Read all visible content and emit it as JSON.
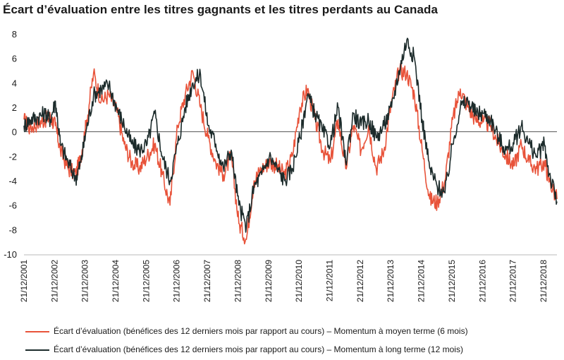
{
  "chart_data": {
    "type": "line",
    "title": "Écart d’évaluation entre les titres gagnants et les titres perdants au Canada",
    "xlabel": "",
    "ylabel": "",
    "ylim": [
      -10,
      8
    ],
    "yticks": [
      8,
      6,
      4,
      2,
      0,
      -2,
      -4,
      -6,
      -8,
      -10
    ],
    "xlim": [
      "2001-12-21",
      "2019-05-31"
    ],
    "xtick_labels": [
      "21/12/2001",
      "21/12/2002",
      "21/12/2003",
      "21/12/2004",
      "21/12/2005",
      "21/12/2006",
      "21/12/2007",
      "21/12/2008",
      "21/12/2009",
      "21/12/2010",
      "21/12/2011",
      "21/12/2012",
      "21/12/2013",
      "21/12/2014",
      "21/12/2015",
      "21/12/2016",
      "21/12/2017",
      "21/12/2018"
    ],
    "grid": false,
    "zero_line": true,
    "legend_position": "bottom",
    "series": [
      {
        "name": "Écart d’évaluation (bénéfices des 12 derniers mois par rapport au cours) – Momentum à moyen terme (6 mois)",
        "color": "#e8533a",
        "x": [
          "2001-12-21",
          "2002-03-01",
          "2002-06-01",
          "2002-09-01",
          "2002-11-01",
          "2003-01-01",
          "2003-03-01",
          "2003-06-01",
          "2003-09-01",
          "2003-11-01",
          "2004-01-01",
          "2004-04-01",
          "2004-07-01",
          "2004-10-01",
          "2005-01-01",
          "2005-04-01",
          "2005-07-01",
          "2005-10-01",
          "2006-01-01",
          "2006-04-01",
          "2006-07-01",
          "2006-10-01",
          "2007-01-01",
          "2007-04-01",
          "2007-07-01",
          "2007-10-01",
          "2008-01-01",
          "2008-04-01",
          "2008-07-01",
          "2008-10-01",
          "2009-01-01",
          "2009-04-01",
          "2009-07-01",
          "2009-10-01",
          "2010-01-01",
          "2010-04-01",
          "2010-07-01",
          "2010-10-01",
          "2011-01-01",
          "2011-04-01",
          "2011-07-01",
          "2011-10-01",
          "2012-01-01",
          "2012-04-01",
          "2012-07-01",
          "2012-10-01",
          "2013-01-01",
          "2013-04-01",
          "2013-07-01",
          "2013-10-01",
          "2014-01-01",
          "2014-04-01",
          "2014-07-01",
          "2014-10-01",
          "2015-01-01",
          "2015-04-01",
          "2015-07-01",
          "2015-10-01",
          "2016-01-01",
          "2016-04-01",
          "2016-07-01",
          "2016-10-01",
          "2017-01-01",
          "2017-04-01",
          "2017-07-01",
          "2017-10-01",
          "2018-01-01",
          "2018-04-01",
          "2018-07-01",
          "2018-10-01",
          "2019-01-01",
          "2019-03-01",
          "2019-05-31"
        ],
        "values": [
          1.0,
          0.3,
          0.7,
          1.0,
          1.2,
          0.5,
          -1.5,
          -3.0,
          -3.5,
          -2.0,
          0.5,
          4.8,
          2.5,
          3.0,
          1.8,
          -1.0,
          -2.5,
          -3.0,
          -2.0,
          -1.0,
          -3.5,
          -6.0,
          0.5,
          3.0,
          4.9,
          2.0,
          -0.5,
          -2.5,
          -3.5,
          -2.0,
          -7.5,
          -8.8,
          -4.0,
          -3.0,
          -2.5,
          -2.8,
          -3.5,
          -2.0,
          2.0,
          3.5,
          1.0,
          -1.5,
          -2.5,
          1.0,
          -3.0,
          0.5,
          -1.5,
          0.5,
          -3.0,
          -1.5,
          2.5,
          5.0,
          4.8,
          3.0,
          -1.5,
          -5.5,
          -5.8,
          -4.0,
          1.0,
          3.5,
          2.0,
          1.0,
          0.8,
          0.5,
          -1.0,
          -2.0,
          -2.8,
          -1.0,
          -2.5,
          -3.0,
          -2.5,
          -4.0,
          -5.5
        ]
      },
      {
        "name": "Écart d’évaluation (bénéfices des 12 derniers mois par rapport au cours) – Momentum à long terme (12 mois)",
        "color": "#1c2b2b",
        "x": [
          "2001-12-21",
          "2002-03-01",
          "2002-06-01",
          "2002-09-01",
          "2002-11-01",
          "2003-01-01",
          "2003-03-01",
          "2003-06-01",
          "2003-09-01",
          "2003-11-01",
          "2004-01-01",
          "2004-04-01",
          "2004-07-01",
          "2004-10-01",
          "2005-01-01",
          "2005-04-01",
          "2005-07-01",
          "2005-10-01",
          "2006-01-01",
          "2006-04-01",
          "2006-07-01",
          "2006-10-01",
          "2007-01-01",
          "2007-04-01",
          "2007-07-01",
          "2007-10-01",
          "2008-01-01",
          "2008-04-01",
          "2008-07-01",
          "2008-10-01",
          "2009-01-01",
          "2009-04-01",
          "2009-07-01",
          "2009-10-01",
          "2010-01-01",
          "2010-04-01",
          "2010-07-01",
          "2010-10-01",
          "2011-01-01",
          "2011-04-01",
          "2011-07-01",
          "2011-10-01",
          "2012-01-01",
          "2012-04-01",
          "2012-07-01",
          "2012-10-01",
          "2013-01-01",
          "2013-04-01",
          "2013-07-01",
          "2013-10-01",
          "2014-01-01",
          "2014-04-01",
          "2014-07-01",
          "2014-10-01",
          "2015-01-01",
          "2015-04-01",
          "2015-07-01",
          "2015-10-01",
          "2016-01-01",
          "2016-04-01",
          "2016-07-01",
          "2016-10-01",
          "2017-01-01",
          "2017-04-01",
          "2017-07-01",
          "2017-10-01",
          "2018-01-01",
          "2018-04-01",
          "2018-07-01",
          "2018-10-01",
          "2019-01-01",
          "2019-03-01",
          "2019-05-31"
        ],
        "values": [
          0.5,
          1.0,
          1.2,
          1.5,
          1.0,
          2.5,
          -1.0,
          -2.5,
          -3.8,
          -2.5,
          0.0,
          3.0,
          3.5,
          3.8,
          2.0,
          0.5,
          -1.0,
          -1.5,
          -1.0,
          1.5,
          -2.0,
          -4.0,
          -1.0,
          2.0,
          4.0,
          4.7,
          0.5,
          -1.0,
          -3.0,
          -1.5,
          -6.0,
          -7.8,
          -4.5,
          -3.5,
          -2.0,
          -3.0,
          -4.0,
          -3.0,
          -0.5,
          3.0,
          1.5,
          0.0,
          -1.0,
          2.0,
          -2.5,
          1.5,
          0.5,
          1.0,
          -0.5,
          0.5,
          2.0,
          5.0,
          7.5,
          6.0,
          1.0,
          -3.0,
          -4.5,
          -5.0,
          -1.0,
          2.0,
          2.5,
          1.5,
          1.5,
          1.0,
          -0.5,
          -1.5,
          -1.0,
          0.5,
          -1.0,
          -2.0,
          -1.0,
          -3.5,
          -5.7
        ]
      }
    ]
  }
}
